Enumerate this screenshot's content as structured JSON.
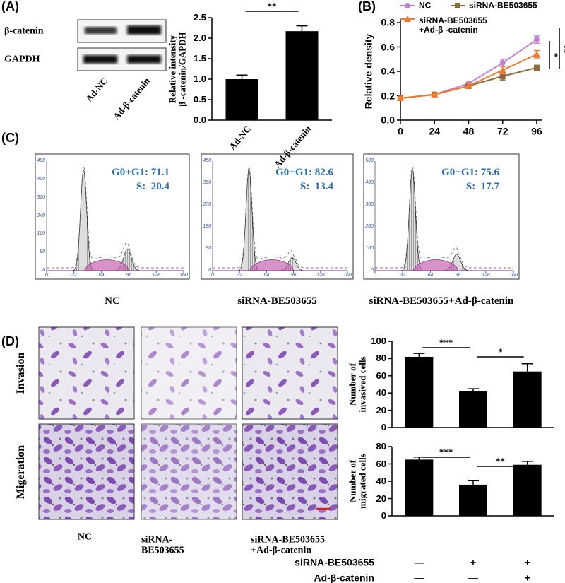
{
  "panel_labels": [
    "(A)",
    "(B)",
    "(C)",
    "(D)"
  ],
  "blot": {
    "rows": [
      "β-catenin",
      "GAPDH"
    ],
    "lanes": [
      "Ad-NC",
      "Ad-β-catenin"
    ]
  },
  "chart_data": [
    {
      "type": "bar",
      "categories": [
        "Ad-NC",
        "Ad-β-catenin"
      ],
      "values": [
        1.0,
        2.17
      ],
      "errors": [
        0.1,
        0.13
      ],
      "color": "#000000",
      "ylabel": "Relative intensity\nβ -catenin/GAPDH",
      "ylim": [
        0,
        2.5
      ],
      "yticks": [
        {
          "value": 0,
          "label": "0.0"
        },
        0.5,
        {
          "value": 1,
          "label": "1.0"
        },
        1.5,
        {
          "value": 2,
          "label": "2.0"
        },
        2.5
      ],
      "annotations": [
        "**"
      ]
    },
    {
      "type": "line",
      "ylabel": "Relative density",
      "x": [
        0,
        24,
        48,
        72,
        96
      ],
      "xlim": [
        0,
        100
      ],
      "xticks": [
        0,
        24,
        48,
        72,
        96
      ],
      "ylim": [
        0,
        0.8
      ],
      "yticks": [
        {
          "value": 0,
          "label": "0.0"
        },
        0.2,
        0.4,
        0.6,
        0.8
      ],
      "series": [
        {
          "name": "NC",
          "color": "#c17fd6",
          "values": [
            0.18,
            0.21,
            0.3,
            0.47,
            0.66
          ],
          "errors": [
            0.01,
            0.01,
            0.01,
            0.03,
            0.03
          ]
        },
        {
          "name": "siRNA-BE503655",
          "color": "#8b6a3a",
          "values": [
            0.18,
            0.21,
            0.28,
            0.36,
            0.43
          ],
          "errors": [
            0.01,
            0.01,
            0.02,
            0.03,
            0.02
          ]
        },
        {
          "name": "siRNA-BE503655\n+Ad-β -catenin",
          "color": "#f07a30",
          "values": [
            0.18,
            0.21,
            0.28,
            0.41,
            0.54
          ],
          "errors": [
            0.01,
            0.01,
            0.02,
            0.03,
            0.03
          ]
        }
      ],
      "annotations": [
        "*",
        "**"
      ]
    },
    {
      "type": "bar",
      "categories": [
        null,
        null,
        null
      ],
      "values": [
        82,
        42,
        65
      ],
      "errors": [
        4,
        3,
        9
      ],
      "color": "#000000",
      "ylabel": "Number of\ninvasived cells",
      "ylim": [
        0,
        100
      ],
      "yticks": [
        0,
        20,
        40,
        60,
        80,
        100
      ],
      "annotations": [
        "***",
        "*"
      ]
    },
    {
      "type": "bar",
      "categories": [
        null,
        null,
        null
      ],
      "values": [
        65,
        36,
        59
      ],
      "errors": [
        3,
        5,
        4
      ],
      "color": "#000000",
      "ylabel": "Number of\nmigrated cells",
      "ylim": [
        0,
        80
      ],
      "yticks": [
        0,
        20,
        40,
        60,
        80
      ],
      "annotations": [
        "***",
        "**"
      ]
    }
  ],
  "flow": [
    {
      "caption": "NC",
      "g0g1": "G0+G1: 71.1",
      "s": "S:  20.4",
      "xticks": [
        0,
        32,
        64,
        96,
        128,
        160
      ],
      "yticks": [
        0,
        80,
        160,
        240,
        320,
        400,
        480
      ]
    },
    {
      "caption": "siRNA-BE503655",
      "g0g1": "G0+G1: 82.6",
      "s": "S:  13.4",
      "xticks": [
        0,
        32,
        64,
        96,
        128,
        160
      ],
      "yticks": [
        0,
        90,
        180,
        270,
        360,
        450
      ]
    },
    {
      "caption": "siRNA-BE503655+Ad-β-catenin",
      "g0g1": "G0+G1: 75.6",
      "s": "S:  17.7",
      "xticks": [
        0,
        32,
        64,
        96,
        128,
        160
      ],
      "yticks": [
        0,
        100,
        200,
        300,
        400,
        500
      ]
    }
  ],
  "micro": {
    "rows": [
      "Invasion",
      "Migeration"
    ],
    "captions": [
      "NC",
      "siRNA-\nBE503655",
      "siRNA-BE503655\n+Ad-β-catenin"
    ]
  },
  "treatment": {
    "rows": [
      {
        "label": "siRNA-BE503655",
        "marks": [
          "—",
          "+",
          "+"
        ]
      },
      {
        "label": "Ad-β-catenin",
        "marks": [
          "—",
          "—",
          "+"
        ]
      }
    ]
  }
}
